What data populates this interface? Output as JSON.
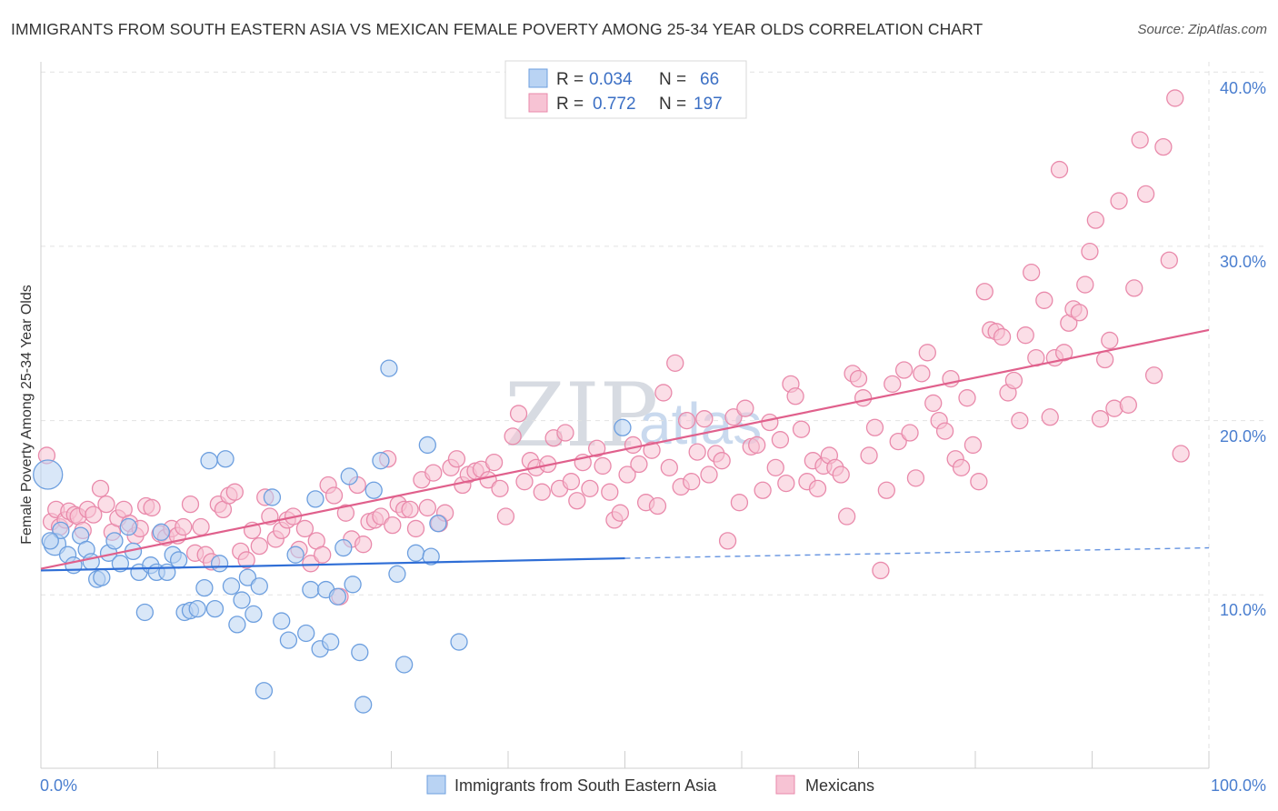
{
  "title": "IMMIGRANTS FROM SOUTH EASTERN ASIA VS MEXICAN FEMALE POVERTY AMONG 25-34 YEAR OLDS CORRELATION CHART",
  "source": "Source: ZipAtlas.com",
  "watermark": {
    "zip": "ZIP",
    "atlas": "atlas"
  },
  "colors": {
    "blue_fill": "#b9d3f3",
    "blue_stroke": "#6d9fdf",
    "blue_line": "#2f6ed6",
    "pink_fill": "#f7c3d4",
    "pink_stroke": "#e98aab",
    "pink_line": "#e0608c",
    "tick_label": "#4a7ecf",
    "grid": "#e2e2e2"
  },
  "legend": {
    "rows": [
      {
        "r_label": "R =",
        "r_value": "0.034",
        "n_label": "N =",
        "n_value": "66"
      },
      {
        "r_label": "R =",
        "r_value": "0.772",
        "n_label": "N =",
        "n_value": "197"
      }
    ]
  },
  "chart_data": {
    "type": "scatter",
    "xlabel": "",
    "ylabel": "Female Poverty Among 25-34 Year Olds",
    "xlim": [
      0,
      100
    ],
    "ylim": [
      0,
      41
    ],
    "x_tick_labels": [
      "0.0%",
      "100.0%"
    ],
    "y_ticks": [
      10,
      20,
      30,
      40
    ],
    "y_tick_labels": [
      "10.0%",
      "20.0%",
      "30.0%",
      "40.0%"
    ],
    "grid": true,
    "legend_position": "top-center",
    "series": [
      {
        "name": "Immigrants from South Eastern Asia",
        "color": "#6d9fdf",
        "trend": {
          "x": [
            0,
            50
          ],
          "y": [
            11.4,
            12.1
          ],
          "dashed_to": [
            100,
            12.7
          ]
        },
        "points": [
          [
            0.6,
            16.9
          ],
          [
            1.2,
            12.9
          ],
          [
            1.7,
            13.7
          ],
          [
            2.3,
            12.3
          ],
          [
            2.8,
            11.7
          ],
          [
            3.4,
            13.4
          ],
          [
            3.9,
            12.6
          ],
          [
            4.3,
            11.9
          ],
          [
            4.8,
            10.9
          ],
          [
            5.2,
            11.0
          ],
          [
            5.8,
            12.4
          ],
          [
            6.3,
            13.1
          ],
          [
            6.8,
            11.8
          ],
          [
            7.5,
            13.9
          ],
          [
            7.9,
            12.5
          ],
          [
            8.4,
            11.3
          ],
          [
            8.9,
            9.0
          ],
          [
            9.4,
            11.7
          ],
          [
            9.9,
            11.3
          ],
          [
            10.3,
            13.6
          ],
          [
            10.8,
            11.3
          ],
          [
            11.3,
            12.3
          ],
          [
            11.8,
            12.0
          ],
          [
            12.3,
            9.0
          ],
          [
            12.8,
            9.1
          ],
          [
            13.4,
            9.2
          ],
          [
            14.0,
            10.4
          ],
          [
            14.4,
            17.7
          ],
          [
            14.9,
            9.2
          ],
          [
            15.3,
            11.8
          ],
          [
            15.8,
            17.8
          ],
          [
            16.3,
            10.5
          ],
          [
            16.8,
            8.3
          ],
          [
            17.2,
            9.7
          ],
          [
            17.7,
            11.0
          ],
          [
            18.2,
            8.9
          ],
          [
            18.7,
            10.5
          ],
          [
            19.1,
            4.5
          ],
          [
            19.8,
            15.6
          ],
          [
            20.6,
            8.5
          ],
          [
            21.2,
            7.4
          ],
          [
            21.8,
            12.3
          ],
          [
            22.7,
            7.8
          ],
          [
            23.1,
            10.3
          ],
          [
            23.5,
            15.5
          ],
          [
            23.9,
            6.9
          ],
          [
            24.4,
            10.3
          ],
          [
            24.8,
            7.3
          ],
          [
            25.4,
            9.9
          ],
          [
            25.9,
            12.7
          ],
          [
            26.4,
            16.8
          ],
          [
            26.7,
            10.6
          ],
          [
            27.3,
            6.7
          ],
          [
            27.6,
            3.7
          ],
          [
            28.5,
            16.0
          ],
          [
            29.1,
            17.7
          ],
          [
            29.8,
            23.0
          ],
          [
            30.5,
            11.2
          ],
          [
            31.1,
            6.0
          ],
          [
            32.1,
            12.4
          ],
          [
            33.1,
            18.6
          ],
          [
            33.4,
            12.2
          ],
          [
            34.0,
            14.1
          ],
          [
            35.8,
            7.3
          ],
          [
            49.8,
            19.6
          ],
          [
            0.8,
            13.1
          ]
        ]
      },
      {
        "name": "Mexicans",
        "color": "#e98aab",
        "trend": {
          "x": [
            0,
            100
          ],
          "y": [
            11.5,
            25.2
          ]
        },
        "points": [
          [
            0.5,
            18.0
          ],
          [
            0.9,
            14.2
          ],
          [
            1.3,
            14.9
          ],
          [
            1.6,
            13.9
          ],
          [
            2.1,
            14.3
          ],
          [
            2.4,
            14.8
          ],
          [
            2.9,
            14.6
          ],
          [
            3.2,
            14.5
          ],
          [
            3.6,
            13.7
          ],
          [
            4.0,
            14.9
          ],
          [
            4.5,
            14.6
          ],
          [
            5.1,
            16.1
          ],
          [
            5.6,
            15.2
          ],
          [
            6.1,
            13.6
          ],
          [
            6.6,
            14.4
          ],
          [
            7.1,
            14.9
          ],
          [
            7.6,
            14.1
          ],
          [
            8.1,
            13.4
          ],
          [
            8.5,
            13.8
          ],
          [
            9.0,
            15.1
          ],
          [
            9.5,
            15.0
          ],
          [
            10.2,
            13.5
          ],
          [
            10.7,
            13.3
          ],
          [
            11.2,
            13.8
          ],
          [
            11.7,
            13.4
          ],
          [
            12.2,
            13.9
          ],
          [
            12.8,
            15.2
          ],
          [
            13.2,
            12.4
          ],
          [
            13.7,
            13.9
          ],
          [
            14.1,
            12.3
          ],
          [
            14.6,
            11.9
          ],
          [
            15.2,
            15.2
          ],
          [
            15.6,
            14.9
          ],
          [
            16.1,
            15.7
          ],
          [
            16.6,
            15.9
          ],
          [
            17.1,
            12.5
          ],
          [
            17.6,
            12.0
          ],
          [
            18.1,
            13.7
          ],
          [
            18.7,
            12.8
          ],
          [
            19.2,
            15.6
          ],
          [
            19.6,
            14.5
          ],
          [
            20.1,
            13.2
          ],
          [
            20.6,
            13.7
          ],
          [
            21.1,
            14.3
          ],
          [
            21.6,
            14.5
          ],
          [
            22.1,
            12.6
          ],
          [
            22.6,
            13.8
          ],
          [
            23.1,
            11.8
          ],
          [
            23.6,
            13.1
          ],
          [
            24.1,
            12.3
          ],
          [
            24.6,
            16.3
          ],
          [
            25.1,
            15.7
          ],
          [
            25.6,
            9.9
          ],
          [
            26.1,
            14.7
          ],
          [
            26.6,
            13.2
          ],
          [
            27.1,
            16.3
          ],
          [
            27.6,
            12.9
          ],
          [
            28.1,
            14.2
          ],
          [
            28.6,
            14.3
          ],
          [
            29.1,
            14.5
          ],
          [
            29.7,
            17.8
          ],
          [
            30.1,
            14.0
          ],
          [
            30.6,
            15.2
          ],
          [
            31.1,
            14.9
          ],
          [
            31.6,
            14.9
          ],
          [
            32.1,
            13.8
          ],
          [
            32.6,
            16.6
          ],
          [
            33.1,
            15.0
          ],
          [
            33.6,
            17.0
          ],
          [
            34.1,
            14.1
          ],
          [
            34.6,
            14.7
          ],
          [
            35.1,
            17.3
          ],
          [
            35.6,
            17.8
          ],
          [
            36.1,
            16.3
          ],
          [
            36.6,
            16.9
          ],
          [
            37.2,
            17.1
          ],
          [
            37.7,
            17.2
          ],
          [
            38.3,
            16.6
          ],
          [
            38.8,
            17.6
          ],
          [
            39.3,
            16.1
          ],
          [
            39.8,
            14.5
          ],
          [
            40.4,
            19.1
          ],
          [
            40.9,
            20.4
          ],
          [
            41.4,
            16.5
          ],
          [
            41.9,
            17.7
          ],
          [
            42.4,
            17.3
          ],
          [
            42.9,
            15.9
          ],
          [
            43.4,
            17.5
          ],
          [
            43.9,
            19.0
          ],
          [
            44.4,
            16.1
          ],
          [
            44.9,
            19.3
          ],
          [
            45.4,
            16.5
          ],
          [
            45.9,
            15.4
          ],
          [
            46.4,
            17.6
          ],
          [
            47.0,
            16.1
          ],
          [
            47.6,
            18.4
          ],
          [
            48.1,
            17.4
          ],
          [
            48.7,
            15.9
          ],
          [
            49.1,
            14.3
          ],
          [
            49.6,
            14.7
          ],
          [
            50.2,
            16.9
          ],
          [
            50.7,
            18.6
          ],
          [
            51.2,
            17.5
          ],
          [
            51.8,
            15.3
          ],
          [
            52.3,
            18.3
          ],
          [
            52.8,
            15.1
          ],
          [
            53.3,
            21.6
          ],
          [
            53.8,
            17.3
          ],
          [
            54.3,
            23.3
          ],
          [
            54.8,
            16.2
          ],
          [
            55.3,
            20.0
          ],
          [
            55.7,
            16.5
          ],
          [
            56.2,
            18.2
          ],
          [
            56.8,
            20.1
          ],
          [
            57.2,
            16.9
          ],
          [
            57.8,
            18.1
          ],
          [
            58.3,
            17.7
          ],
          [
            58.8,
            13.1
          ],
          [
            59.3,
            20.2
          ],
          [
            59.8,
            15.3
          ],
          [
            60.3,
            20.7
          ],
          [
            60.8,
            18.5
          ],
          [
            61.3,
            18.6
          ],
          [
            61.8,
            16.0
          ],
          [
            62.4,
            19.9
          ],
          [
            62.9,
            17.3
          ],
          [
            63.3,
            18.9
          ],
          [
            63.8,
            16.4
          ],
          [
            64.2,
            22.1
          ],
          [
            64.6,
            21.4
          ],
          [
            65.1,
            19.5
          ],
          [
            65.6,
            16.5
          ],
          [
            66.1,
            17.7
          ],
          [
            66.5,
            16.1
          ],
          [
            67.0,
            17.4
          ],
          [
            67.5,
            18.0
          ],
          [
            68.0,
            17.3
          ],
          [
            68.5,
            16.9
          ],
          [
            69.0,
            14.5
          ],
          [
            69.5,
            22.7
          ],
          [
            70.0,
            22.4
          ],
          [
            70.4,
            21.3
          ],
          [
            70.9,
            18.0
          ],
          [
            71.4,
            19.6
          ],
          [
            71.9,
            11.4
          ],
          [
            72.4,
            16.0
          ],
          [
            72.9,
            22.1
          ],
          [
            73.4,
            18.8
          ],
          [
            73.9,
            22.9
          ],
          [
            74.4,
            19.3
          ],
          [
            74.9,
            16.7
          ],
          [
            75.4,
            22.7
          ],
          [
            75.9,
            23.9
          ],
          [
            76.4,
            21.0
          ],
          [
            76.9,
            20.0
          ],
          [
            77.4,
            19.4
          ],
          [
            77.9,
            22.4
          ],
          [
            78.3,
            17.8
          ],
          [
            78.8,
            17.3
          ],
          [
            79.3,
            21.3
          ],
          [
            79.8,
            18.6
          ],
          [
            80.3,
            16.5
          ],
          [
            80.8,
            27.4
          ],
          [
            81.3,
            25.2
          ],
          [
            81.8,
            25.1
          ],
          [
            82.3,
            24.8
          ],
          [
            82.8,
            21.6
          ],
          [
            83.3,
            22.3
          ],
          [
            83.8,
            20.0
          ],
          [
            84.3,
            24.9
          ],
          [
            84.8,
            28.5
          ],
          [
            85.2,
            23.6
          ],
          [
            85.9,
            26.9
          ],
          [
            86.4,
            20.2
          ],
          [
            86.8,
            23.6
          ],
          [
            87.2,
            34.4
          ],
          [
            87.6,
            23.9
          ],
          [
            88.0,
            25.6
          ],
          [
            88.4,
            26.4
          ],
          [
            88.9,
            26.2
          ],
          [
            89.4,
            27.8
          ],
          [
            89.8,
            29.7
          ],
          [
            90.3,
            31.5
          ],
          [
            90.7,
            20.1
          ],
          [
            91.1,
            23.5
          ],
          [
            91.5,
            24.6
          ],
          [
            91.9,
            20.7
          ],
          [
            92.3,
            32.6
          ],
          [
            93.1,
            20.9
          ],
          [
            93.6,
            27.6
          ],
          [
            94.1,
            36.1
          ],
          [
            94.6,
            33.0
          ],
          [
            95.3,
            22.6
          ],
          [
            96.1,
            35.7
          ],
          [
            96.6,
            29.2
          ],
          [
            97.1,
            38.5
          ],
          [
            97.6,
            18.1
          ]
        ]
      }
    ]
  }
}
